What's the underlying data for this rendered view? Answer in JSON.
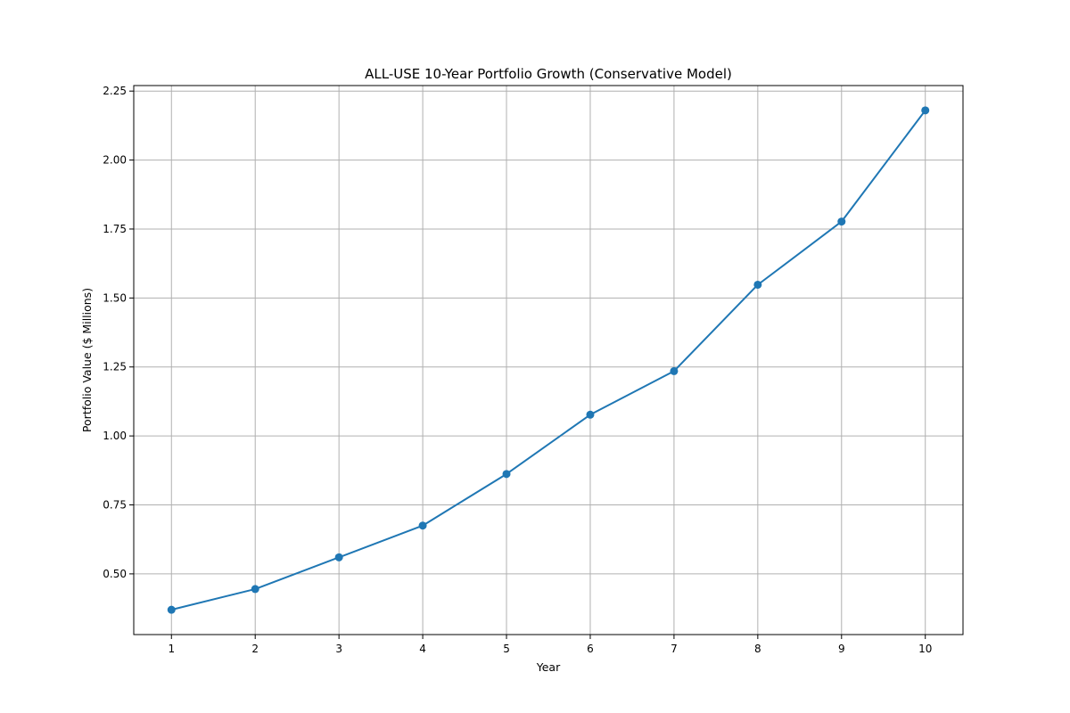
{
  "chart_data": {
    "type": "line",
    "title": "ALL-USE 10-Year Portfolio Growth (Conservative Model)",
    "xlabel": "Year",
    "ylabel": "Portfolio Value ($ Millions)",
    "x": [
      1,
      2,
      3,
      4,
      5,
      6,
      7,
      8,
      9,
      10
    ],
    "series": [
      {
        "values": [
          0.37,
          0.445,
          0.56,
          0.675,
          0.862,
          1.077,
          1.235,
          1.548,
          1.777,
          2.18
        ],
        "color": "#1f77b4",
        "marker": "circle"
      }
    ],
    "xticks": [
      "1",
      "2",
      "3",
      "4",
      "5",
      "6",
      "7",
      "8",
      "9",
      "10"
    ],
    "yticks": [
      "0.50",
      "0.75",
      "1.00",
      "1.25",
      "1.50",
      "1.75",
      "2.00",
      "2.25"
    ],
    "xlim": [
      0.55,
      10.45
    ],
    "ylim": [
      0.28,
      2.27
    ],
    "grid": true,
    "legend": "none"
  }
}
